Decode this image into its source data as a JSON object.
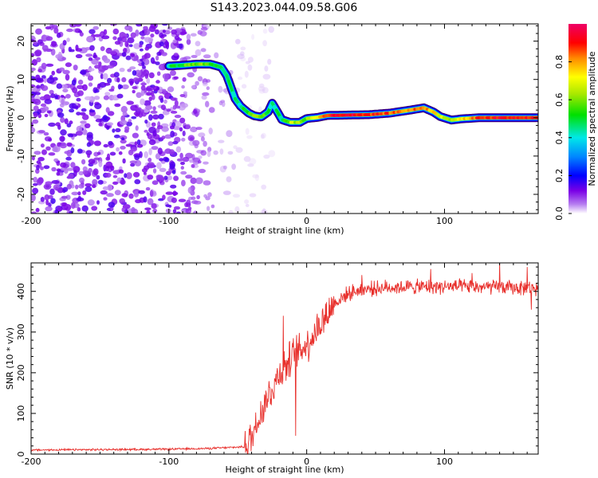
{
  "title": "S143.2023.044.09.58.G06",
  "chart_data": [
    {
      "type": "heatmap",
      "xlabel": "Height of straight line (km)",
      "ylabel": "Frequency (Hz)",
      "xlim": [
        -200,
        168
      ],
      "ylim": [
        -25,
        24.5
      ],
      "xticks": [
        "-200",
        "-100",
        "0",
        "100"
      ],
      "xtick_values": [
        -200,
        -100,
        0,
        100
      ],
      "yticks": [
        "-20",
        "-10",
        "0",
        "10",
        "20"
      ],
      "ytick_values": [
        -20,
        -10,
        0,
        10,
        20
      ],
      "noise_region_x_max": -70,
      "ridge": [
        {
          "x": -100,
          "f": 13.5,
          "a": 0.45
        },
        {
          "x": -90,
          "f": 13.7,
          "a": 0.55
        },
        {
          "x": -80,
          "f": 14,
          "a": 0.6
        },
        {
          "x": -70,
          "f": 14,
          "a": 0.55
        },
        {
          "x": -62,
          "f": 13.2,
          "a": 0.5
        },
        {
          "x": -58,
          "f": 11,
          "a": 0.45
        },
        {
          "x": -55,
          "f": 8,
          "a": 0.45
        },
        {
          "x": -52,
          "f": 5,
          "a": 0.45
        },
        {
          "x": -48,
          "f": 3,
          "a": 0.45
        },
        {
          "x": -42,
          "f": 1.2,
          "a": 0.55
        },
        {
          "x": -38,
          "f": 0.5,
          "a": 0.65
        },
        {
          "x": -33,
          "f": 0.2,
          "a": 0.6
        },
        {
          "x": -28,
          "f": 1.5,
          "a": 0.45
        },
        {
          "x": -25,
          "f": 3.8,
          "a": 0.45
        },
        {
          "x": -22,
          "f": 2,
          "a": 0.45
        },
        {
          "x": -18,
          "f": -0.5,
          "a": 0.5
        },
        {
          "x": -12,
          "f": -1.2,
          "a": 0.65
        },
        {
          "x": -5,
          "f": -1.2,
          "a": 0.6
        },
        {
          "x": 0,
          "f": -0.2,
          "a": 0.6
        },
        {
          "x": 8,
          "f": 0.1,
          "a": 0.75
        },
        {
          "x": 15,
          "f": 0.6,
          "a": 0.9
        },
        {
          "x": 30,
          "f": 0.7,
          "a": 0.95
        },
        {
          "x": 45,
          "f": 0.8,
          "a": 0.9
        },
        {
          "x": 60,
          "f": 1.2,
          "a": 0.85
        },
        {
          "x": 75,
          "f": 2,
          "a": 0.8
        },
        {
          "x": 85,
          "f": 2.6,
          "a": 0.85
        },
        {
          "x": 92,
          "f": 1.5,
          "a": 0.75
        },
        {
          "x": 97,
          "f": 0.3,
          "a": 0.7
        },
        {
          "x": 105,
          "f": -0.6,
          "a": 0.65
        },
        {
          "x": 112,
          "f": -0.3,
          "a": 0.7
        },
        {
          "x": 125,
          "f": 0,
          "a": 0.9
        },
        {
          "x": 168,
          "f": 0,
          "a": 0.92
        }
      ]
    },
    {
      "type": "colorbar",
      "label": "Normalized spectral amplitude",
      "range": [
        0,
        1
      ],
      "ticks": [
        "0.0",
        "0.2",
        "0.4",
        "0.6",
        "0.8"
      ],
      "tick_values": [
        0,
        0.2,
        0.4,
        0.6,
        0.8
      ]
    },
    {
      "type": "line",
      "xlabel": "Height of straight line (km)",
      "ylabel": "SNR (10 * v/v)",
      "xlim": [
        -200,
        168
      ],
      "ylim": [
        0,
        470
      ],
      "xticks": [
        "-200",
        "-100",
        "0",
        "100"
      ],
      "xtick_values": [
        -200,
        -100,
        0,
        100
      ],
      "yticks": [
        "0",
        "100",
        "200",
        "300",
        "400"
      ],
      "ytick_values": [
        0,
        100,
        200,
        300,
        400
      ],
      "color": "#e8302c",
      "trend": [
        {
          "x": -200,
          "y": 10
        },
        {
          "x": -100,
          "y": 12
        },
        {
          "x": -70,
          "y": 14
        },
        {
          "x": -45,
          "y": 18
        },
        {
          "x": -40,
          "y": 40
        },
        {
          "x": -35,
          "y": 90
        },
        {
          "x": -30,
          "y": 130
        },
        {
          "x": -25,
          "y": 160
        },
        {
          "x": -20,
          "y": 200
        },
        {
          "x": -10,
          "y": 240
        },
        {
          "x": 0,
          "y": 270
        },
        {
          "x": 10,
          "y": 320
        },
        {
          "x": 20,
          "y": 370
        },
        {
          "x": 30,
          "y": 395
        },
        {
          "x": 40,
          "y": 405
        },
        {
          "x": 60,
          "y": 410
        },
        {
          "x": 100,
          "y": 412
        },
        {
          "x": 168,
          "y": 408
        }
      ],
      "spikes": [
        {
          "x": -17,
          "y": 340
        },
        {
          "x": -13,
          "y": 190
        },
        {
          "x": -8,
          "y": 45
        },
        {
          "x": 40,
          "y": 440
        },
        {
          "x": 90,
          "y": 455
        },
        {
          "x": 120,
          "y": 445
        },
        {
          "x": 140,
          "y": 470
        },
        {
          "x": 160,
          "y": 460
        },
        {
          "x": 163,
          "y": 355
        }
      ]
    }
  ]
}
